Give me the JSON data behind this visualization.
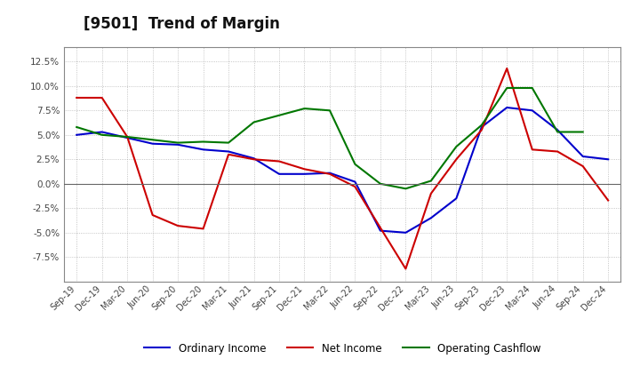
{
  "title": "[9501]  Trend of Margin",
  "x_labels": [
    "Sep-19",
    "Dec-19",
    "Mar-20",
    "Jun-20",
    "Sep-20",
    "Dec-20",
    "Mar-21",
    "Jun-21",
    "Sep-21",
    "Dec-21",
    "Mar-22",
    "Jun-22",
    "Sep-22",
    "Dec-22",
    "Mar-23",
    "Jun-23",
    "Sep-23",
    "Dec-23",
    "Mar-24",
    "Jun-24",
    "Sep-24",
    "Dec-24"
  ],
  "ordinary_income": [
    5.0,
    5.3,
    4.7,
    4.1,
    4.0,
    3.5,
    3.3,
    2.6,
    1.0,
    1.0,
    1.1,
    0.2,
    -4.8,
    -5.0,
    -3.5,
    -1.5,
    5.8,
    7.8,
    7.5,
    5.5,
    2.8,
    2.5
  ],
  "net_income": [
    8.8,
    8.8,
    4.8,
    -3.2,
    -4.3,
    -4.6,
    3.0,
    2.5,
    2.3,
    1.5,
    1.0,
    -0.3,
    -4.5,
    -8.7,
    -1.0,
    2.5,
    5.5,
    11.8,
    3.5,
    3.3,
    1.8,
    -1.7
  ],
  "operating_cf": [
    5.8,
    5.0,
    4.8,
    4.5,
    4.2,
    4.3,
    4.2,
    6.3,
    7.0,
    7.7,
    7.5,
    2.0,
    0.0,
    -0.5,
    0.3,
    3.8,
    6.0,
    9.8,
    9.8,
    5.3,
    5.3,
    null
  ],
  "ordinary_income_color": "#0000cc",
  "net_income_color": "#cc0000",
  "operating_cf_color": "#007700",
  "ylim": [
    -10.0,
    14.0
  ],
  "yticks": [
    -7.5,
    -5.0,
    -2.5,
    0.0,
    2.5,
    5.0,
    7.5,
    10.0,
    12.5
  ],
  "background_color": "#ffffff",
  "plot_bg_color": "#ffffff",
  "grid_color": "#999999",
  "title_fontsize": 12,
  "legend_labels": [
    "Ordinary Income",
    "Net Income",
    "Operating Cashflow"
  ]
}
